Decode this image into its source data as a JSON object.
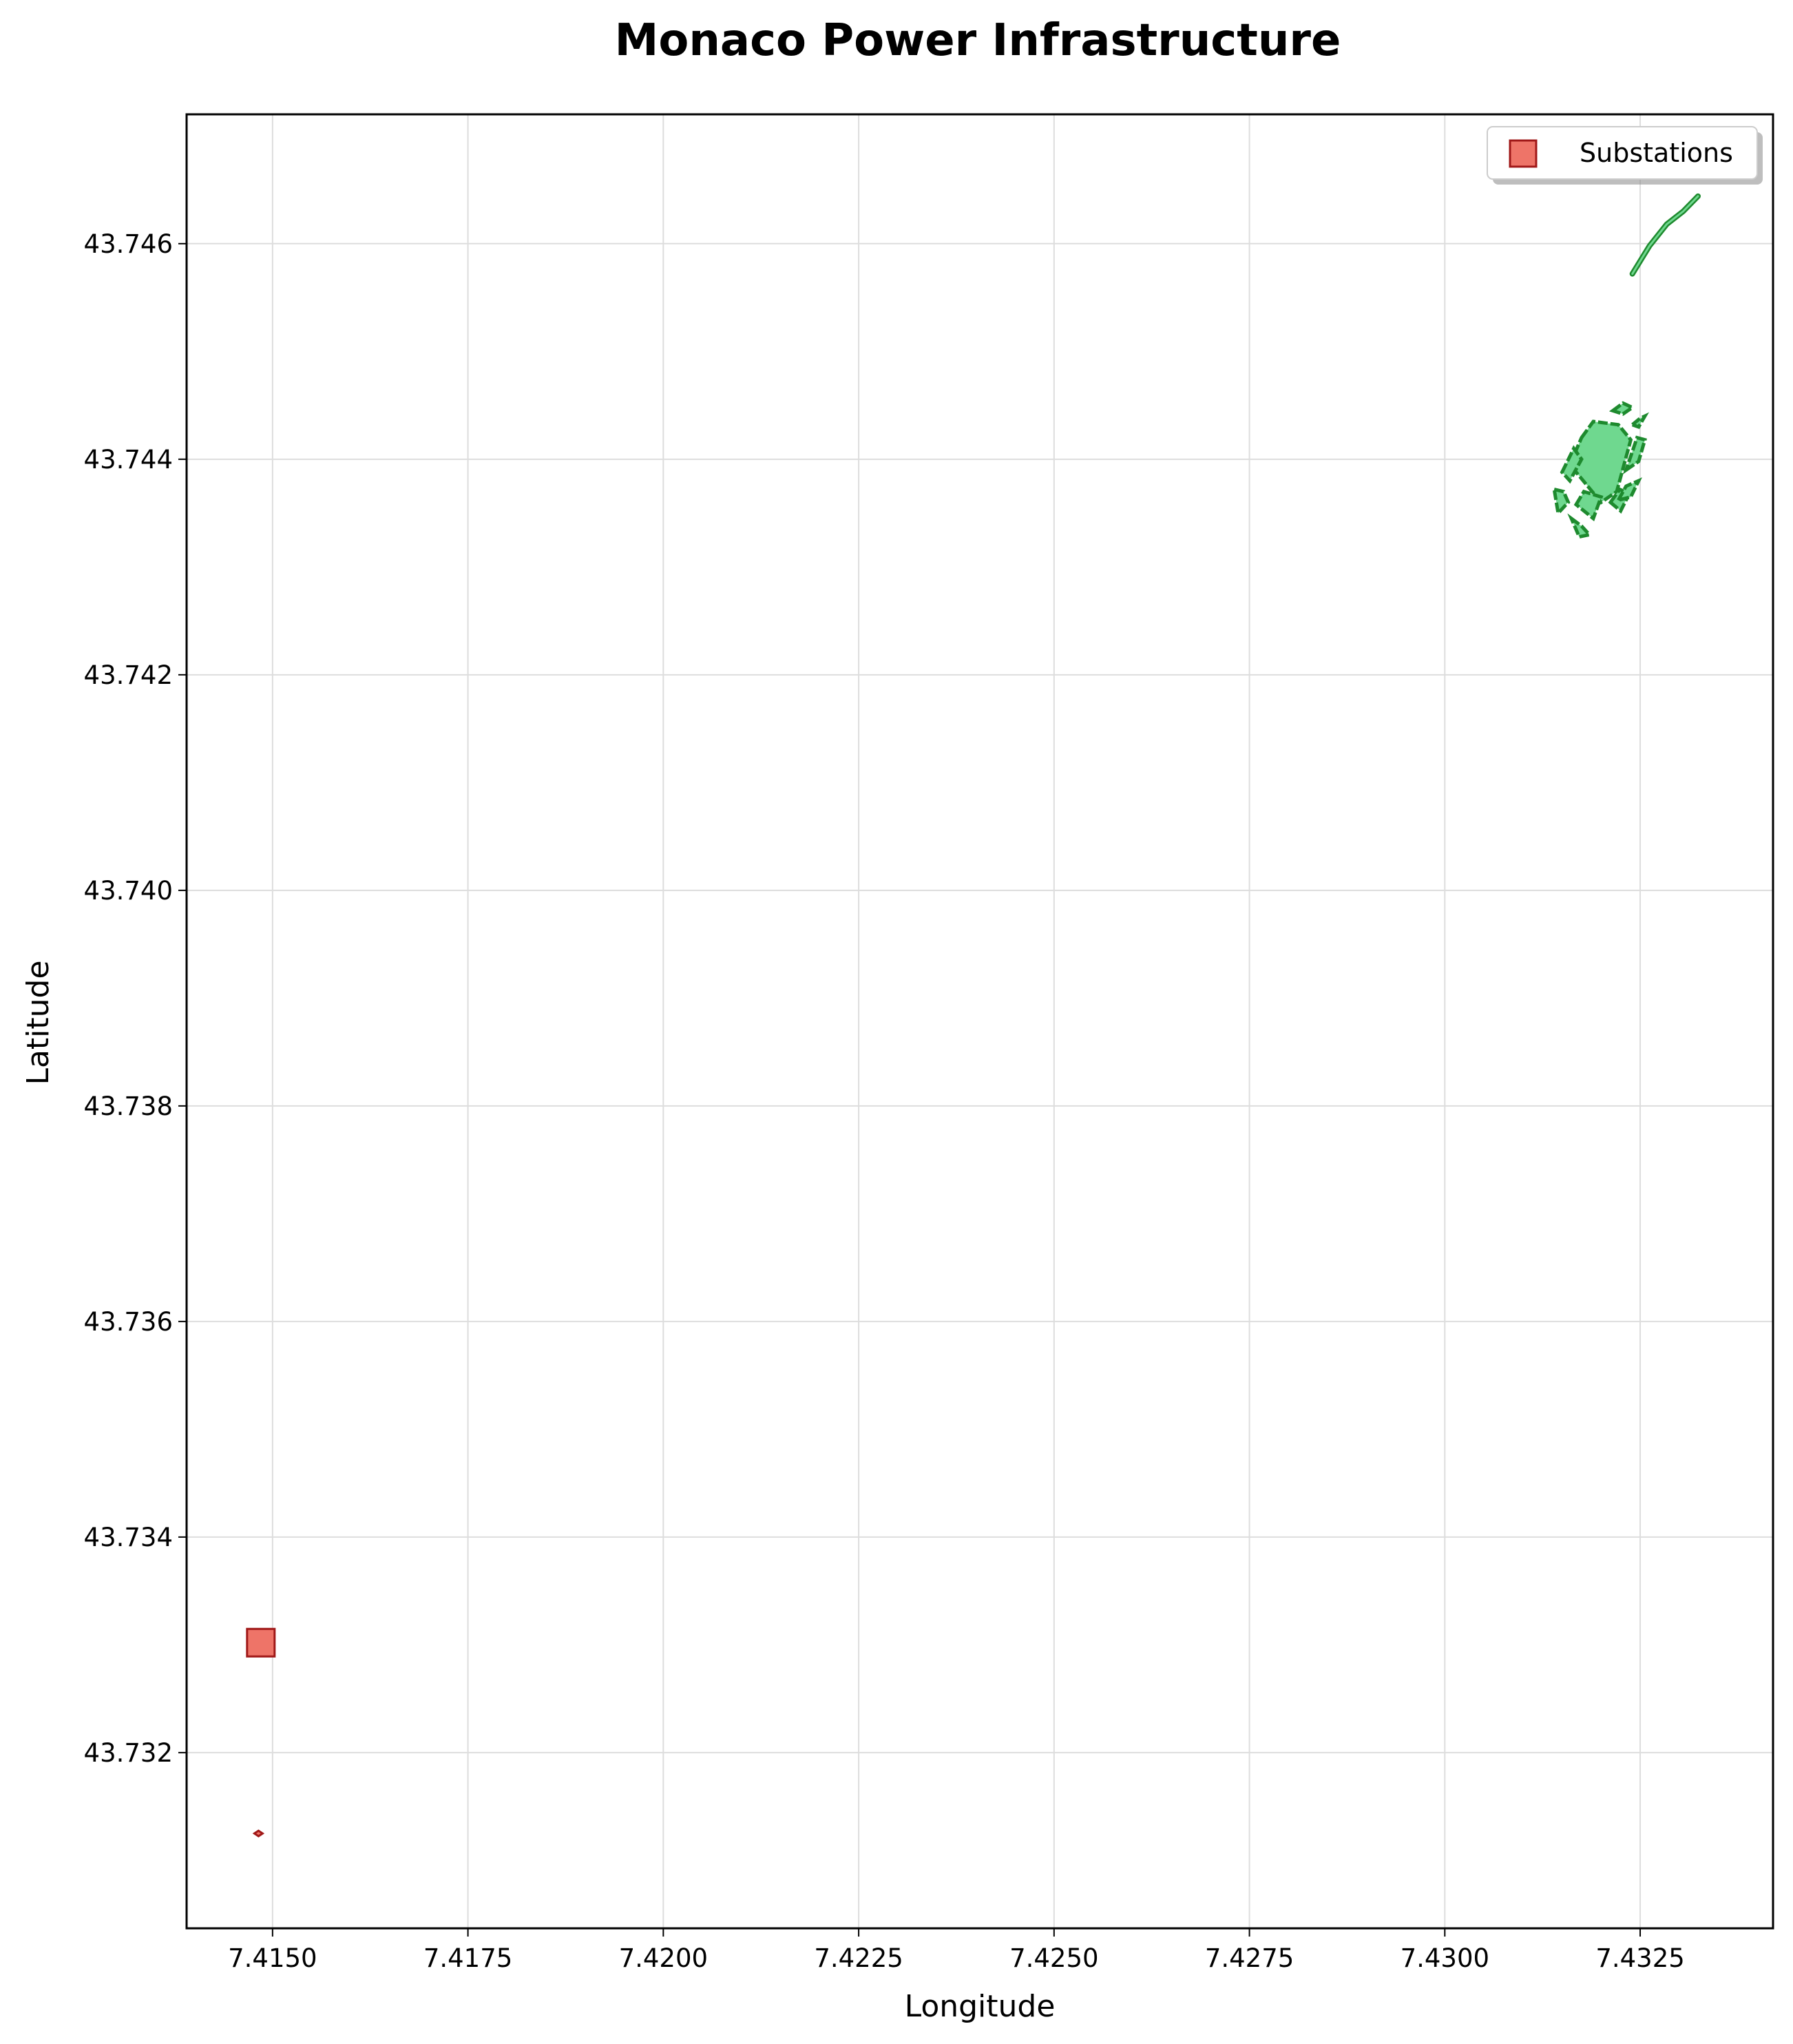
{
  "chart_data": {
    "type": "map",
    "title": "Monaco Power Infrastructure",
    "xlabel": "Longitude",
    "ylabel": "Latitude",
    "xlim": [
      7.4139,
      7.4342
    ],
    "ylim": [
      43.73037,
      43.7472
    ],
    "x_ticks": [
      "7.4150",
      "7.4175",
      "7.4200",
      "7.4225",
      "7.4250",
      "7.4275",
      "7.4300",
      "7.4325"
    ],
    "y_ticks": [
      "43.732",
      "43.734",
      "43.736",
      "43.738",
      "43.740",
      "43.742",
      "43.744",
      "43.746"
    ],
    "grid": true,
    "legend": {
      "position": "top-right",
      "entries": [
        "Substations"
      ]
    },
    "colors": {
      "substation_fill": "#ee7468",
      "substation_edge": "#a01818",
      "polygon_fill": "#6fd88f",
      "polygon_edge": "#1e8a2e",
      "line": "#2a9a3a"
    },
    "substations": [
      {
        "lon": 7.41485,
        "lat": 43.73302,
        "size": "large"
      },
      {
        "lon": 7.41482,
        "lat": 43.73125,
        "size": "small"
      }
    ],
    "power_lines": [
      [
        [
          7.4324,
          43.74572
        ],
        [
          7.43262,
          43.74598
        ],
        [
          7.43284,
          43.74618
        ],
        [
          7.43305,
          43.7463
        ],
        [
          7.43324,
          43.74644
        ]
      ]
    ],
    "power_polygons": [
      [
        [
          7.43175,
          43.7442
        ],
        [
          7.4319,
          43.74435
        ],
        [
          7.43222,
          43.74432
        ],
        [
          7.43238,
          43.74418
        ],
        [
          7.4322,
          43.7437
        ],
        [
          7.432,
          43.7436
        ],
        [
          7.4316,
          43.74395
        ]
      ],
      [
        [
          7.4315,
          43.74388
        ],
        [
          7.43165,
          43.7441
        ],
        [
          7.43175,
          43.744
        ],
        [
          7.4316,
          43.7438
        ]
      ],
      [
        [
          7.43232,
          43.7439
        ],
        [
          7.43248,
          43.74398
        ],
        [
          7.43256,
          43.74418
        ],
        [
          7.43246,
          43.7442
        ]
      ],
      [
        [
          7.4314,
          43.74372
        ],
        [
          7.43152,
          43.7437
        ],
        [
          7.43158,
          43.7436
        ],
        [
          7.43145,
          43.7435
        ]
      ],
      [
        [
          7.43168,
          43.74358
        ],
        [
          7.43178,
          43.7437
        ],
        [
          7.432,
          43.74365
        ],
        [
          7.4319,
          43.74345
        ]
      ],
      [
        [
          7.43162,
          43.74345
        ],
        [
          7.43175,
          43.74338
        ],
        [
          7.43185,
          43.7433
        ],
        [
          7.43172,
          43.74328
        ]
      ],
      [
        [
          7.43212,
          43.7436
        ],
        [
          7.43224,
          43.74372
        ],
        [
          7.43236,
          43.74368
        ],
        [
          7.43225,
          43.74352
        ]
      ],
      [
        [
          7.4324,
          43.74432
        ],
        [
          7.4325,
          43.74438
        ],
        [
          7.43256,
          43.7444
        ],
        [
          7.43248,
          43.7443
        ]
      ],
      [
        [
          7.43215,
          43.74445
        ],
        [
          7.43228,
          43.74452
        ],
        [
          7.4324,
          43.74448
        ],
        [
          7.43228,
          43.74442
        ]
      ],
      [
        [
          7.43222,
          43.74362
        ],
        [
          7.43232,
          43.74375
        ],
        [
          7.43248,
          43.7438
        ],
        [
          7.43238,
          43.74365
        ]
      ]
    ]
  }
}
